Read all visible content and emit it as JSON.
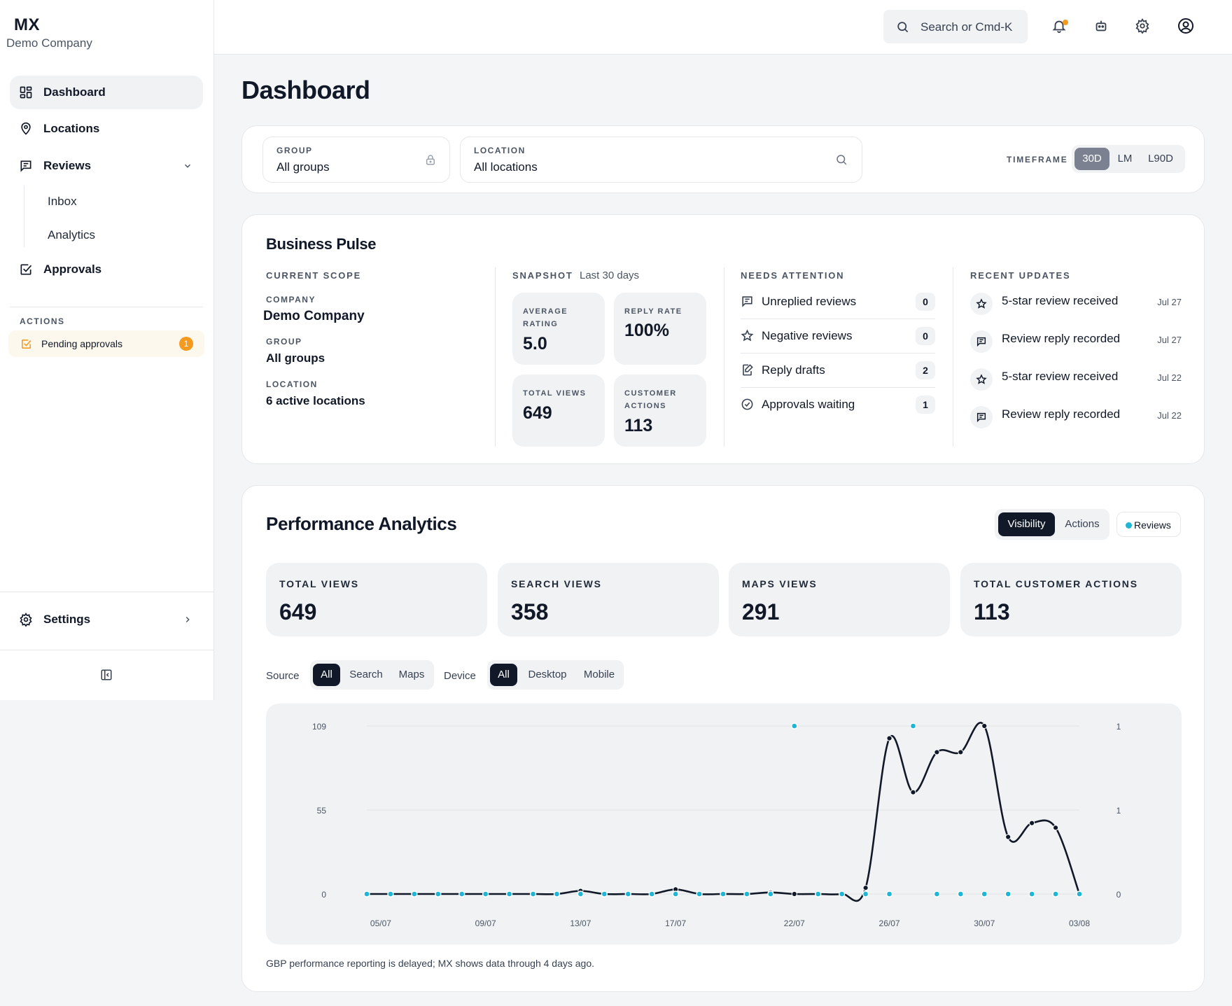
{
  "brand": {
    "title": "MX",
    "subtitle": "Demo Company"
  },
  "sidebar": {
    "items": [
      {
        "label": "Dashboard",
        "icon": "grid-icon"
      },
      {
        "label": "Locations",
        "icon": "map-pin-icon"
      },
      {
        "label": "Reviews",
        "icon": "message-square-icon"
      },
      {
        "label": "Approvals",
        "icon": "check-square-icon"
      }
    ],
    "reviews_sub": [
      {
        "label": "Inbox"
      },
      {
        "label": "Analytics"
      }
    ],
    "actions_label": "ACTIONS",
    "pending": {
      "label": "Pending approvals",
      "count": "1"
    },
    "settings_label": "Settings"
  },
  "topbar": {
    "search_placeholder": "Search or Cmd-K",
    "icons": [
      "bell-icon",
      "bot-icon",
      "gear-icon",
      "user-circle-icon"
    ]
  },
  "page": {
    "title": "Dashboard"
  },
  "filters": {
    "group": {
      "label": "GROUP",
      "value": "All groups"
    },
    "location": {
      "label": "LOCATION",
      "value": "All locations"
    },
    "timeframe": {
      "label": "TIMEFRAME",
      "options": [
        "30D",
        "LM",
        "L90D"
      ],
      "selected": "30D"
    }
  },
  "pulse": {
    "title": "Business Pulse",
    "scope": {
      "label": "CURRENT SCOPE",
      "company_label": "COMPANY",
      "company": "Demo Company",
      "group_label": "GROUP",
      "group": "All groups",
      "location_label": "LOCATION",
      "location": "6 active locations"
    },
    "snapshot": {
      "label": "SNAPSHOT",
      "period": "Last 30 days",
      "tiles": [
        {
          "label": "AVERAGE RATING",
          "value": "5.0"
        },
        {
          "label": "REPLY RATE",
          "value": "100%"
        },
        {
          "label": "TOTAL VIEWS",
          "value": "649"
        },
        {
          "label": "CUSTOMER ACTIONS",
          "value": "113"
        }
      ]
    },
    "attention": {
      "label": "NEEDS ATTENTION",
      "items": [
        {
          "label": "Unreplied reviews",
          "count": "0",
          "icon": "message-square-icon"
        },
        {
          "label": "Negative reviews",
          "count": "0",
          "icon": "star-icon"
        },
        {
          "label": "Reply drafts",
          "count": "2",
          "icon": "edit-note-icon"
        },
        {
          "label": "Approvals waiting",
          "count": "1",
          "icon": "check-circle-icon"
        }
      ]
    },
    "updates": {
      "label": "RECENT UPDATES",
      "items": [
        {
          "label": "5-star review received",
          "date": "Jul 27",
          "icon": "star-icon"
        },
        {
          "label": "Review reply recorded",
          "date": "Jul 27",
          "icon": "message-square-icon"
        },
        {
          "label": "5-star review received",
          "date": "Jul 22",
          "icon": "star-icon"
        },
        {
          "label": "Review reply recorded",
          "date": "Jul 22",
          "icon": "message-square-icon"
        }
      ]
    }
  },
  "performance": {
    "title": "Performance Analytics",
    "tabs": [
      "Visibility",
      "Actions"
    ],
    "active_tab": "Visibility",
    "legend_label": "Reviews",
    "metrics": [
      {
        "label": "TOTAL VIEWS",
        "value": "649"
      },
      {
        "label": "SEARCH VIEWS",
        "value": "358"
      },
      {
        "label": "MAPS VIEWS",
        "value": "291"
      },
      {
        "label": "TOTAL CUSTOMER ACTIONS",
        "value": "113"
      }
    ],
    "source": {
      "label": "Source",
      "options": [
        "All",
        "Search",
        "Maps"
      ],
      "selected": "All"
    },
    "device": {
      "label": "Device",
      "options": [
        "All",
        "Desktop",
        "Mobile"
      ],
      "selected": "All"
    },
    "footnote": "GBP performance reporting is delayed; MX shows data through 4 days ago."
  },
  "colors": {
    "accent": "#1fb6d6",
    "dark": "#111827",
    "warning": "#f39a1f",
    "muted_bg": "#f1f2f4"
  },
  "chart_data": {
    "type": "line",
    "x": [
      "04/07",
      "05/07",
      "06/07",
      "07/07",
      "08/07",
      "09/07",
      "10/07",
      "11/07",
      "12/07",
      "13/07",
      "14/07",
      "15/07",
      "16/07",
      "17/07",
      "18/07",
      "19/07",
      "20/07",
      "21/07",
      "22/07",
      "23/07",
      "24/07",
      "25/07",
      "26/07",
      "27/07",
      "28/07",
      "29/07",
      "30/07",
      "31/07",
      "01/08",
      "02/08",
      "03/08"
    ],
    "x_tick_labels": [
      "05/07",
      "09/07",
      "13/07",
      "17/07",
      "22/07",
      "26/07",
      "30/07",
      "03/08"
    ],
    "y_left": {
      "ticks": [
        "0",
        "55",
        "109"
      ],
      "range": [
        0,
        109
      ]
    },
    "y_right": {
      "ticks": [
        "0",
        "1",
        "1"
      ],
      "range": [
        0,
        1
      ]
    },
    "series": [
      {
        "axis": "left",
        "color": "#111827",
        "values": [
          0,
          0,
          0,
          0,
          0,
          0,
          0,
          0,
          0,
          2,
          0,
          0,
          0,
          3,
          0,
          0,
          0,
          1,
          0,
          0,
          0,
          4,
          101,
          66,
          92,
          92,
          109,
          37,
          46,
          43,
          0
        ]
      },
      {
        "name": "Reviews",
        "axis": "right",
        "color": "#1fb6d6",
        "values": [
          0,
          0,
          0,
          0,
          0,
          0,
          0,
          0,
          0,
          0,
          0,
          0,
          0,
          0,
          0,
          0,
          0,
          0,
          1,
          0,
          0,
          0,
          0,
          1,
          0,
          0,
          0,
          0,
          0,
          0,
          0
        ]
      }
    ]
  }
}
